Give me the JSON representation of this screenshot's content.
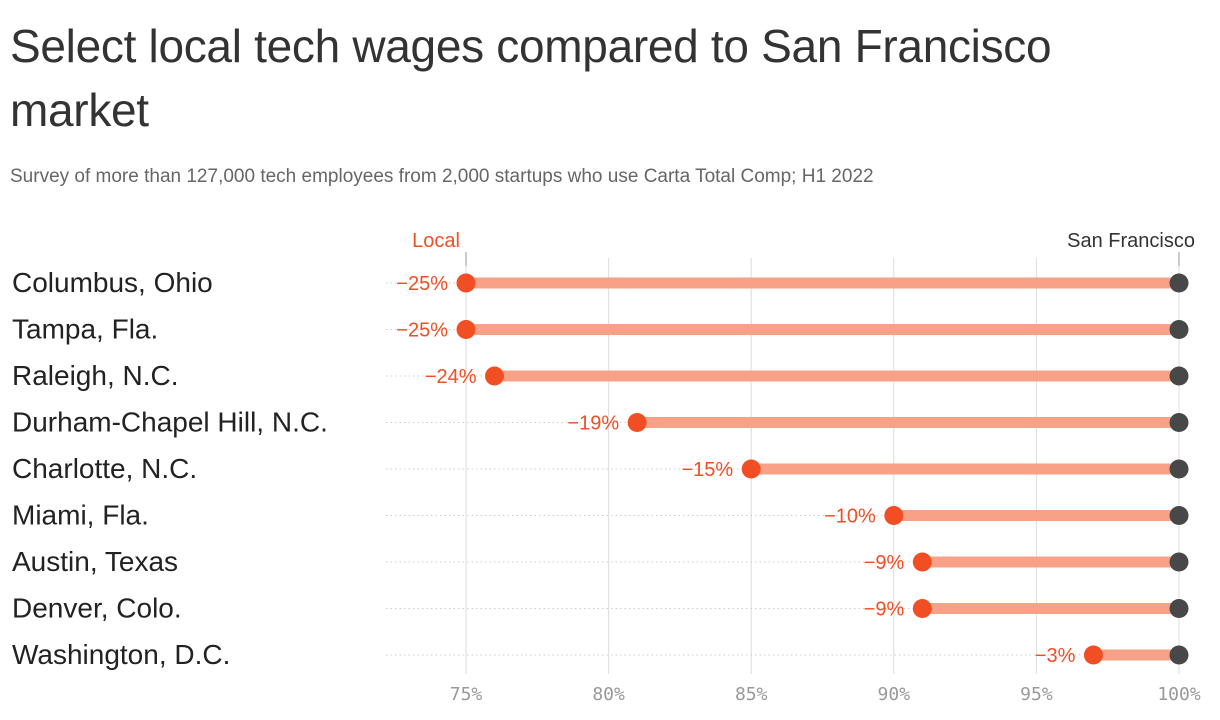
{
  "title": "Select local tech wages compared to San Francisco market",
  "subtitle": "Survey of more than 127,000 tech employees from 2,000 startups who use Carta Total Comp; H1 2022",
  "colors": {
    "local": "#f14e23",
    "local_bar": "#f9a187",
    "sf": "#484848",
    "grid": "#dcdcdc",
    "row_line": "#cccccc"
  },
  "chart_data": {
    "type": "dumbbell",
    "title": "Select local tech wages compared to San Francisco market",
    "subtitle": "Survey of more than 127,000 tech employees from 2,000 startups who use Carta Total Comp; H1 2022",
    "xlim": [
      75,
      100
    ],
    "ticks": [
      75,
      80,
      85,
      90,
      95,
      100
    ],
    "tick_labels": [
      "75%",
      "80%",
      "85%",
      "90%",
      "95%",
      "100%"
    ],
    "grid": true,
    "legend": {
      "local": "Local",
      "sf": "San Francisco"
    },
    "categories": [
      "Columbus, Ohio",
      "Tampa, Fla.",
      "Raleigh, N.C.",
      "Durham-Chapel Hill, N.C.",
      "Charlotte, N.C.",
      "Miami, Fla.",
      "Austin, Texas",
      "Denver, Colo.",
      "Washington, D.C."
    ],
    "series": [
      {
        "name": "Local",
        "values": [
          75,
          75,
          76,
          81,
          85,
          90,
          91,
          91,
          97
        ]
      },
      {
        "name": "San Francisco",
        "values": [
          100,
          100,
          100,
          100,
          100,
          100,
          100,
          100,
          100
        ]
      }
    ],
    "labels": [
      "−25%",
      "−25%",
      "−24%",
      "−19%",
      "−15%",
      "−10%",
      "−9%",
      "−9%",
      "−3%"
    ]
  }
}
